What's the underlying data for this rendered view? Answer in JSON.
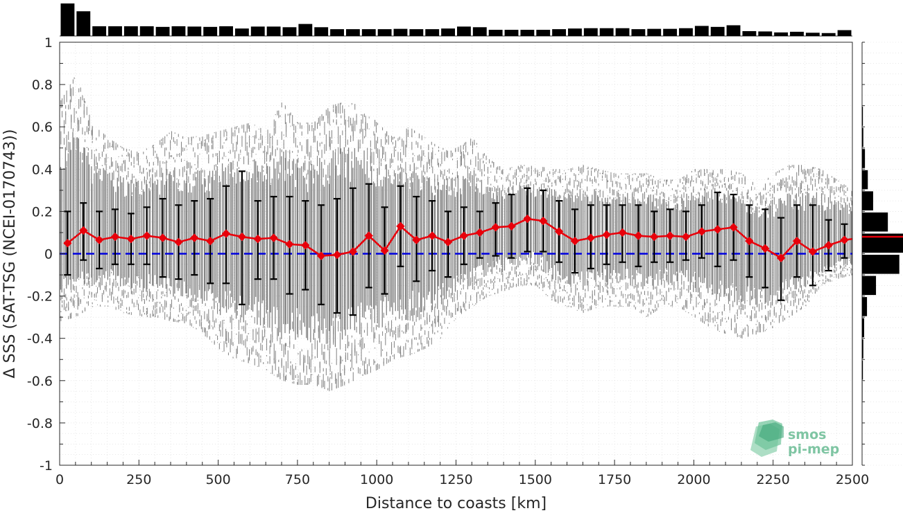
{
  "chart_data": {
    "type": "scatter",
    "xlabel": "Distance to coasts [km]",
    "ylabel": "Δ SSS (SAT-TSG (NCEI-0170743))",
    "xlim": [
      0,
      2500
    ],
    "ylim": [
      -1,
      1
    ],
    "xticks": [
      "0",
      "250",
      "500",
      "750",
      "1000",
      "1250",
      "1500",
      "1750",
      "2000",
      "2250",
      "2500"
    ],
    "yticks": [
      "1",
      "0.8",
      "0.6",
      "0.4",
      "0.2",
      "0",
      "-0.2",
      "-0.4",
      "-0.6",
      "-0.8",
      "-1"
    ],
    "grid": true,
    "zero_line": {
      "y": 0,
      "color": "#0000e0",
      "style": "dashed"
    },
    "binned_mean": {
      "color": "#e8000b",
      "x": [
        25,
        75,
        125,
        175,
        225,
        275,
        325,
        375,
        425,
        475,
        525,
        575,
        625,
        675,
        725,
        775,
        825,
        875,
        925,
        975,
        1025,
        1075,
        1125,
        1175,
        1225,
        1275,
        1325,
        1375,
        1425,
        1475,
        1525,
        1575,
        1625,
        1675,
        1725,
        1775,
        1825,
        1875,
        1925,
        1975,
        2025,
        2075,
        2125,
        2175,
        2225,
        2275,
        2325,
        2375,
        2425,
        2475,
        2500
      ],
      "mean": [
        0.05,
        0.11,
        0.065,
        0.08,
        0.07,
        0.085,
        0.075,
        0.055,
        0.075,
        0.06,
        0.095,
        0.08,
        0.07,
        0.075,
        0.045,
        0.04,
        -0.01,
        -0.005,
        0.01,
        0.085,
        0.015,
        0.13,
        0.065,
        0.085,
        0.055,
        0.085,
        0.1,
        0.125,
        0.13,
        0.165,
        0.155,
        0.105,
        0.06,
        0.075,
        0.09,
        0.1,
        0.085,
        0.08,
        0.085,
        0.08,
        0.105,
        0.115,
        0.125,
        0.06,
        0.025,
        -0.02,
        0.06,
        0.01,
        0.04,
        0.065,
        0.07
      ],
      "upper": [
        0.2,
        0.24,
        0.2,
        0.21,
        0.19,
        0.22,
        0.26,
        0.23,
        0.25,
        0.26,
        0.32,
        0.39,
        0.25,
        0.27,
        0.27,
        0.25,
        0.23,
        0.26,
        0.31,
        0.33,
        0.22,
        0.32,
        0.27,
        0.25,
        0.2,
        0.22,
        0.2,
        0.24,
        0.28,
        0.31,
        0.3,
        0.25,
        0.21,
        0.23,
        0.23,
        0.23,
        0.23,
        0.2,
        0.21,
        0.2,
        0.23,
        0.29,
        0.28,
        0.23,
        0.21,
        0.17,
        0.23,
        0.23,
        0.16,
        0.14,
        null
      ],
      "lower": [
        -0.1,
        -0.03,
        -0.07,
        -0.05,
        -0.05,
        -0.05,
        -0.11,
        -0.12,
        -0.1,
        -0.14,
        -0.14,
        -0.24,
        -0.12,
        -0.12,
        -0.19,
        -0.17,
        -0.24,
        -0.28,
        -0.29,
        -0.16,
        -0.19,
        -0.06,
        -0.13,
        -0.08,
        -0.11,
        -0.05,
        -0.02,
        -0.01,
        -0.02,
        0.01,
        0.01,
        -0.04,
        -0.09,
        -0.07,
        -0.05,
        -0.04,
        -0.06,
        -0.04,
        -0.04,
        -0.03,
        -0.02,
        -0.06,
        -0.03,
        -0.11,
        -0.16,
        -0.22,
        -0.11,
        -0.15,
        -0.08,
        -0.02,
        null
      ]
    },
    "scatter_envelope": {
      "color": "#808080",
      "x": [
        0,
        50,
        100,
        150,
        200,
        250,
        300,
        350,
        400,
        450,
        500,
        550,
        600,
        650,
        700,
        750,
        800,
        850,
        900,
        950,
        1000,
        1050,
        1100,
        1150,
        1200,
        1250,
        1300,
        1350,
        1400,
        1450,
        1500,
        1550,
        1600,
        1650,
        1700,
        1750,
        1800,
        1850,
        1900,
        1950,
        2000,
        2050,
        2100,
        2150,
        2200,
        2250,
        2300,
        2350,
        2400,
        2450,
        2500
      ],
      "upper": [
        0.72,
        0.85,
        0.62,
        0.55,
        0.5,
        0.48,
        0.52,
        0.58,
        0.55,
        0.56,
        0.58,
        0.6,
        0.62,
        0.58,
        0.72,
        0.62,
        0.62,
        0.7,
        0.72,
        0.7,
        0.62,
        0.55,
        0.6,
        0.55,
        0.5,
        0.5,
        0.55,
        0.45,
        0.4,
        0.42,
        0.42,
        0.4,
        0.4,
        0.42,
        0.4,
        0.38,
        0.38,
        0.38,
        0.35,
        0.35,
        0.4,
        0.4,
        0.4,
        0.38,
        0.32,
        0.38,
        0.42,
        0.42,
        0.4,
        0.35,
        0.3
      ],
      "lower": [
        -0.32,
        -0.3,
        -0.25,
        -0.25,
        -0.28,
        -0.3,
        -0.3,
        -0.32,
        -0.33,
        -0.38,
        -0.45,
        -0.5,
        -0.52,
        -0.55,
        -0.6,
        -0.62,
        -0.62,
        -0.65,
        -0.62,
        -0.58,
        -0.55,
        -0.5,
        -0.48,
        -0.45,
        -0.4,
        -0.3,
        -0.25,
        -0.2,
        -0.18,
        -0.15,
        -0.15,
        -0.22,
        -0.25,
        -0.28,
        -0.25,
        -0.25,
        -0.25,
        -0.3,
        -0.25,
        -0.25,
        -0.3,
        -0.35,
        -0.38,
        -0.4,
        -0.38,
        -0.35,
        -0.3,
        -0.25,
        -0.15,
        -0.12,
        -0.1
      ],
      "core": [
        0.06,
        0.09,
        0.07,
        0.08,
        0.07,
        0.08,
        0.07,
        0.06,
        0.07,
        0.06,
        0.08,
        0.08,
        0.07,
        0.07,
        0.05,
        0.04,
        0.01,
        0.0,
        0.02,
        0.06,
        0.04,
        0.1,
        0.07,
        0.07,
        0.06,
        0.08,
        0.09,
        0.11,
        0.12,
        0.14,
        0.14,
        0.1,
        0.07,
        0.08,
        0.09,
        0.09,
        0.08,
        0.08,
        0.08,
        0.08,
        0.1,
        0.11,
        0.1,
        0.06,
        0.03,
        0.0,
        0.05,
        0.02,
        0.04,
        0.06,
        0.06
      ]
    },
    "top_histogram": {
      "bins_x": [
        25,
        75,
        125,
        175,
        225,
        275,
        325,
        375,
        425,
        475,
        525,
        575,
        625,
        675,
        725,
        775,
        825,
        875,
        925,
        975,
        1025,
        1075,
        1125,
        1175,
        1225,
        1275,
        1325,
        1375,
        1425,
        1475,
        1525,
        1575,
        1625,
        1675,
        1725,
        1775,
        1825,
        1875,
        1925,
        1975,
        2025,
        2075,
        2125,
        2175,
        2225,
        2275,
        2325,
        2375,
        2425,
        2475
      ],
      "relative_counts": [
        1.0,
        0.76,
        0.3,
        0.3,
        0.3,
        0.3,
        0.28,
        0.3,
        0.29,
        0.28,
        0.3,
        0.23,
        0.29,
        0.29,
        0.27,
        0.37,
        0.27,
        0.21,
        0.21,
        0.21,
        0.21,
        0.22,
        0.21,
        0.21,
        0.23,
        0.29,
        0.27,
        0.19,
        0.19,
        0.19,
        0.19,
        0.21,
        0.23,
        0.24,
        0.24,
        0.24,
        0.21,
        0.22,
        0.22,
        0.24,
        0.31,
        0.28,
        0.33,
        0.15,
        0.14,
        0.11,
        0.13,
        0.1,
        0.09,
        0.18
      ]
    },
    "right_histogram": {
      "bins_y": [
        0.65,
        0.55,
        0.45,
        0.35,
        0.25,
        0.15,
        0.05,
        -0.05,
        -0.15,
        -0.25,
        -0.35,
        -0.45,
        -0.55,
        -0.65
      ],
      "relative_counts": [
        0.02,
        0.03,
        0.07,
        0.14,
        0.27,
        0.63,
        1.0,
        0.91,
        0.34,
        0.12,
        0.05,
        0.03,
        0.02,
        0.01
      ],
      "mean_marker": {
        "y": 0.08,
        "color": "#e8000b"
      }
    }
  },
  "logo": {
    "line1": "smos",
    "line2": "pi-mep"
  }
}
